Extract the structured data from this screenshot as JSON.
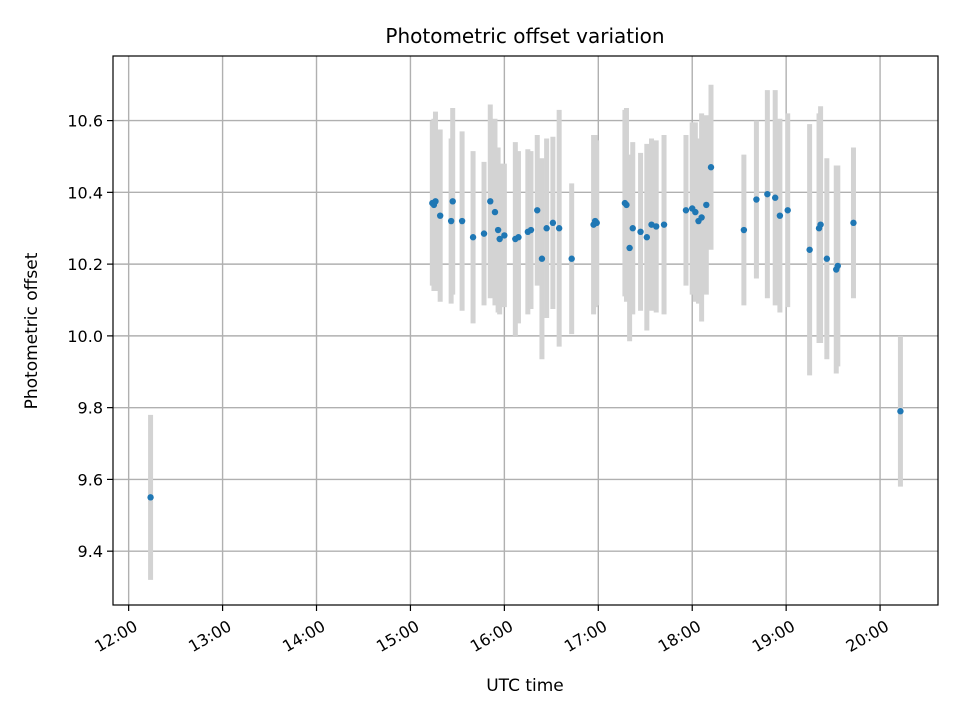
{
  "chart_data": {
    "type": "scatter",
    "title": "Photometric offset variation",
    "xlabel": "UTC time",
    "ylabel": "Photometric offset",
    "x_ticks": [
      "12:00",
      "13:00",
      "14:00",
      "15:00",
      "16:00",
      "17:00",
      "18:00",
      "19:00",
      "20:00"
    ],
    "y_ticks": [
      "9.4",
      "9.6",
      "9.8",
      "10.0",
      "10.2",
      "10.4",
      "10.6"
    ],
    "xlim": [
      "11:50",
      "20:37"
    ],
    "ylim": [
      9.25,
      10.78
    ],
    "grid": true,
    "colors": {
      "points": "#1f77b4",
      "error_bars": "#d3d3d3"
    },
    "series": [
      {
        "x": [
          "12:14",
          "15:14",
          "15:15",
          "15:16",
          "15:19",
          "15:26",
          "15:27",
          "15:33",
          "15:40",
          "15:47",
          "15:51",
          "15:54",
          "15:56",
          "15:57",
          "16:00",
          "16:07",
          "16:09",
          "16:15",
          "16:17",
          "16:21",
          "16:24",
          "16:27",
          "16:31",
          "16:35",
          "16:43",
          "16:57",
          "16:58",
          "16:59",
          "17:17",
          "17:18",
          "17:20",
          "17:22",
          "17:27",
          "17:31",
          "17:34",
          "17:37",
          "17:42",
          "17:56",
          "18:00",
          "18:02",
          "18:04",
          "18:06",
          "18:09",
          "18:12",
          "18:33",
          "18:41",
          "18:48",
          "18:53",
          "18:56",
          "19:01",
          "19:15",
          "19:21",
          "19:22",
          "19:26",
          "19:32",
          "19:33",
          "19:43",
          "20:13"
        ],
        "y": [
          9.55,
          10.37,
          10.365,
          10.375,
          10.335,
          10.32,
          10.375,
          10.32,
          10.275,
          10.285,
          10.375,
          10.345,
          10.295,
          10.27,
          10.28,
          10.27,
          10.275,
          10.29,
          10.295,
          10.35,
          10.215,
          10.3,
          10.315,
          10.3,
          10.215,
          10.31,
          10.32,
          10.315,
          10.37,
          10.365,
          10.245,
          10.3,
          10.29,
          10.275,
          10.31,
          10.305,
          10.31,
          10.35,
          10.355,
          10.345,
          10.32,
          10.33,
          10.365,
          10.47,
          10.295,
          10.38,
          10.395,
          10.385,
          10.335,
          10.35,
          10.24,
          10.3,
          10.31,
          10.215,
          10.185,
          10.195,
          10.315,
          9.79
        ],
        "yerr": [
          0.23,
          0.23,
          0.24,
          0.25,
          0.24,
          0.23,
          0.26,
          0.25,
          0.24,
          0.2,
          0.27,
          0.26,
          0.23,
          0.21,
          0.2,
          0.27,
          0.24,
          0.23,
          0.22,
          0.21,
          0.28,
          0.25,
          0.24,
          0.33,
          0.21,
          0.25,
          0.24,
          0.23,
          0.26,
          0.27,
          0.26,
          0.24,
          0.22,
          0.26,
          0.24,
          0.24,
          0.25,
          0.21,
          0.24,
          0.25,
          0.23,
          0.29,
          0.25,
          0.23,
          0.21,
          0.22,
          0.29,
          0.3,
          0.27,
          0.27,
          0.35,
          0.32,
          0.33,
          0.28,
          0.29,
          0.28,
          0.21,
          0.21
        ]
      }
    ]
  }
}
